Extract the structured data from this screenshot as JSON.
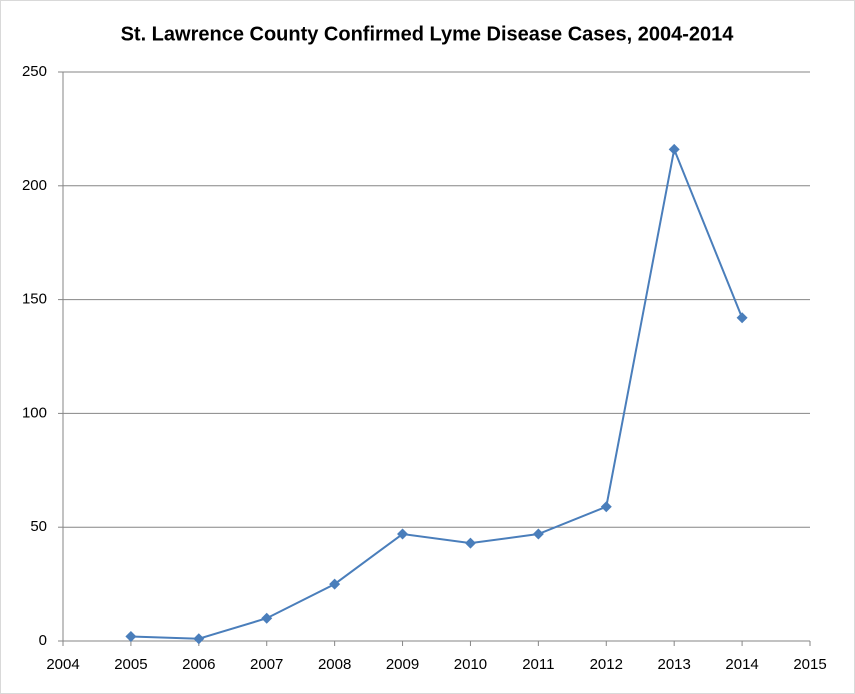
{
  "chart_data": {
    "type": "line",
    "title": "St. Lawrence County Confirmed Lyme Disease Cases, 2004-2014",
    "x": [
      2005,
      2006,
      2007,
      2008,
      2009,
      2010,
      2011,
      2012,
      2013,
      2014
    ],
    "values": [
      2,
      1,
      10,
      25,
      47,
      43,
      47,
      59,
      216,
      142
    ],
    "color": "#4a7ebb",
    "xlim": [
      2004,
      2015
    ],
    "xticks": [
      2004,
      2005,
      2006,
      2007,
      2008,
      2009,
      2010,
      2011,
      2012,
      2013,
      2014,
      2015
    ],
    "ylim": [
      0,
      250
    ],
    "yticks": [
      0,
      50,
      100,
      150,
      200,
      250
    ],
    "grid": true
  }
}
